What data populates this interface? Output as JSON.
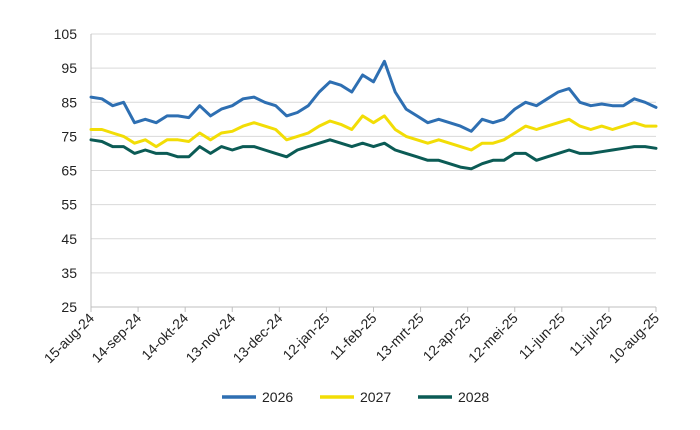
{
  "chart_data": {
    "type": "line",
    "title": "",
    "xlabel": "",
    "ylabel": "",
    "ylim": [
      25,
      105
    ],
    "yticks": [
      25,
      35,
      45,
      55,
      65,
      75,
      85,
      95,
      105
    ],
    "xticks": [
      "15-aug-24",
      "14-sep-24",
      "14-okt-24",
      "13-nov-24",
      "13-dec-24",
      "12-jan-25",
      "11-feb-25",
      "13-mrt-25",
      "12-apr-25",
      "12-mei-25",
      "11-jun-25",
      "11-jul-25",
      "10-aug-25"
    ],
    "grid": "horizontal",
    "legend": "bottom",
    "x": [
      "15-aug-24",
      "22-aug-24",
      "29-aug-24",
      "05-sep-24",
      "12-sep-24",
      "19-sep-24",
      "26-sep-24",
      "03-okt-24",
      "10-okt-24",
      "17-okt-24",
      "24-okt-24",
      "31-okt-24",
      "07-nov-24",
      "14-nov-24",
      "21-nov-24",
      "28-nov-24",
      "05-dec-24",
      "12-dec-24",
      "19-dec-24",
      "26-dec-24",
      "02-jan-25",
      "09-jan-25",
      "16-jan-25",
      "23-jan-25",
      "30-jan-25",
      "06-feb-25",
      "13-feb-25",
      "20-feb-25",
      "27-feb-25",
      "06-mrt-25",
      "13-mrt-25",
      "20-mrt-25",
      "27-mrt-25",
      "03-apr-25",
      "10-apr-25",
      "17-apr-25",
      "24-apr-25",
      "01-mei-25",
      "08-mei-25",
      "15-mei-25",
      "22-mei-25",
      "29-mei-25",
      "05-jun-25",
      "12-jun-25",
      "19-jun-25",
      "26-jun-25",
      "03-jul-25",
      "10-jul-25",
      "17-jul-25",
      "24-jul-25",
      "31-jul-25",
      "07-aug-25",
      "10-aug-25"
    ],
    "series": [
      {
        "name": "2026",
        "color": "#2e6fb2",
        "values": [
          86.5,
          86,
          84,
          85,
          79,
          80,
          79,
          81,
          81,
          80.5,
          84,
          81,
          83,
          84,
          86,
          86.5,
          85,
          84,
          81,
          82,
          84,
          88,
          91,
          90,
          88,
          93,
          91,
          97,
          88,
          83,
          81,
          79,
          80,
          79,
          78,
          76.5,
          80,
          79,
          80,
          83,
          85,
          84,
          86,
          88,
          89,
          85,
          84,
          84.5,
          84,
          84,
          86,
          85,
          83.5
        ]
      },
      {
        "name": "2027",
        "color": "#f2dd06",
        "values": [
          77,
          77,
          76,
          75,
          73,
          74,
          72,
          74,
          74,
          73.5,
          76,
          74,
          76,
          76.5,
          78,
          79,
          78,
          77,
          74,
          75,
          76,
          78,
          79.5,
          78.5,
          77,
          81,
          79,
          81,
          77,
          75,
          74,
          73,
          74,
          73,
          72,
          71,
          73,
          73,
          74,
          76,
          78,
          77,
          78,
          79,
          80,
          78,
          77,
          78,
          77,
          78,
          79,
          78,
          78
        ]
      },
      {
        "name": "2028",
        "color": "#0b5b55",
        "values": [
          74,
          73.5,
          72,
          72,
          70,
          71,
          70,
          70,
          69,
          69,
          72,
          70,
          72,
          71,
          72,
          72,
          71,
          70,
          69,
          71,
          72,
          73,
          74,
          73,
          72,
          73,
          72,
          73,
          71,
          70,
          69,
          68,
          68,
          67,
          66,
          65.5,
          67,
          68,
          68,
          70,
          70,
          68,
          69,
          70,
          71,
          70,
          70,
          70.5,
          71,
          71.5,
          72,
          72,
          71.5
        ]
      }
    ]
  }
}
